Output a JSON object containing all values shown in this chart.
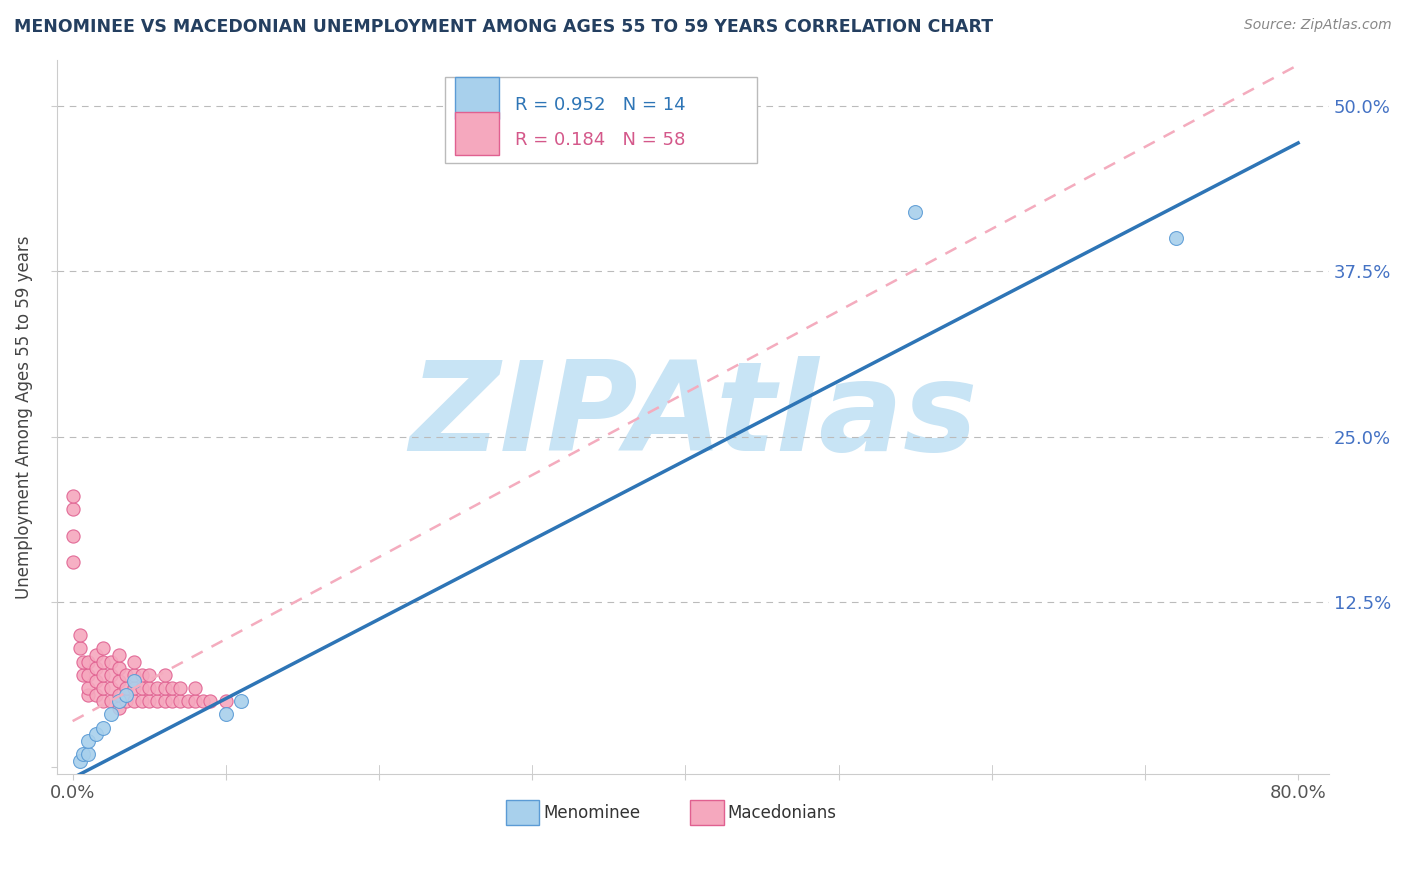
{
  "title": "MENOMINEE VS MACEDONIAN UNEMPLOYMENT AMONG AGES 55 TO 59 YEARS CORRELATION CHART",
  "source_text": "Source: ZipAtlas.com",
  "ylabel": "Unemployment Among Ages 55 to 59 years",
  "xlim": [
    -0.01,
    0.82
  ],
  "ylim": [
    -0.005,
    0.535
  ],
  "xtick_positions": [
    0.0,
    0.1,
    0.2,
    0.3,
    0.4,
    0.5,
    0.6,
    0.7,
    0.8
  ],
  "xticklabels": [
    "0.0%",
    "",
    "",
    "",
    "",
    "",
    "",
    "",
    "80.0%"
  ],
  "ytick_positions": [
    0.0,
    0.125,
    0.25,
    0.375,
    0.5
  ],
  "yticklabels": [
    "",
    "12.5%",
    "25.0%",
    "37.5%",
    "50.0%"
  ],
  "menominee_color": "#A8D0EC",
  "macedonian_color": "#F5A8BE",
  "menominee_edge_color": "#5B9BD5",
  "macedonian_edge_color": "#E06090",
  "blue_line_color": "#2E75B6",
  "pink_line_color": "#F4ACBE",
  "watermark_color": "#C8E4F5",
  "watermark_text": "ZIPAtlas",
  "legend_R_menominee": "R = 0.952",
  "legend_N_menominee": "N = 14",
  "legend_R_macedonian": "R = 0.184",
  "legend_N_macedonian": "N = 58",
  "menominee_x": [
    0.005,
    0.007,
    0.01,
    0.01,
    0.015,
    0.02,
    0.025,
    0.03,
    0.035,
    0.04,
    0.1,
    0.11,
    0.55,
    0.72
  ],
  "menominee_y": [
    0.005,
    0.01,
    0.01,
    0.02,
    0.025,
    0.03,
    0.04,
    0.05,
    0.055,
    0.065,
    0.04,
    0.05,
    0.42,
    0.4
  ],
  "macedonian_x": [
    0.0,
    0.0,
    0.0,
    0.0,
    0.005,
    0.005,
    0.007,
    0.007,
    0.01,
    0.01,
    0.01,
    0.01,
    0.015,
    0.015,
    0.015,
    0.015,
    0.02,
    0.02,
    0.02,
    0.02,
    0.02,
    0.025,
    0.025,
    0.025,
    0.025,
    0.03,
    0.03,
    0.03,
    0.03,
    0.03,
    0.035,
    0.035,
    0.035,
    0.04,
    0.04,
    0.04,
    0.04,
    0.045,
    0.045,
    0.045,
    0.05,
    0.05,
    0.05,
    0.055,
    0.055,
    0.06,
    0.06,
    0.06,
    0.065,
    0.065,
    0.07,
    0.07,
    0.075,
    0.08,
    0.08,
    0.085,
    0.09,
    0.1
  ],
  "macedonian_y": [
    0.195,
    0.205,
    0.155,
    0.175,
    0.09,
    0.1,
    0.07,
    0.08,
    0.055,
    0.06,
    0.07,
    0.08,
    0.055,
    0.065,
    0.075,
    0.085,
    0.05,
    0.06,
    0.07,
    0.08,
    0.09,
    0.05,
    0.06,
    0.07,
    0.08,
    0.045,
    0.055,
    0.065,
    0.075,
    0.085,
    0.05,
    0.06,
    0.07,
    0.05,
    0.06,
    0.07,
    0.08,
    0.05,
    0.06,
    0.07,
    0.05,
    0.06,
    0.07,
    0.05,
    0.06,
    0.05,
    0.06,
    0.07,
    0.05,
    0.06,
    0.05,
    0.06,
    0.05,
    0.05,
    0.06,
    0.05,
    0.05,
    0.05
  ],
  "menominee_marker_size": 100,
  "macedonian_marker_size": 90,
  "background_color": "#FFFFFF",
  "dashed_line_color": "#BBBBBB",
  "title_color": "#243F60",
  "ytick_label_color": "#4472C4",
  "source_color": "#888888",
  "blue_line_R": 0.952,
  "pink_line_R": 0.184,
  "blue_line_slope": 0.6,
  "blue_line_intercept": -0.008,
  "pink_line_slope": 0.62,
  "pink_line_intercept": 0.035
}
